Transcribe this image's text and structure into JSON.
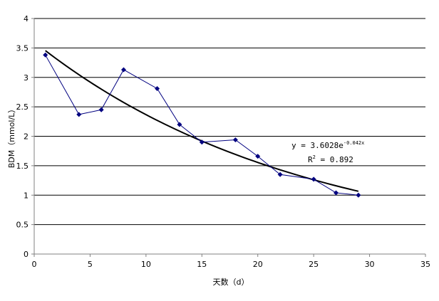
{
  "chart_data": {
    "type": "scatter",
    "title": "",
    "xlabel": "天数（d）",
    "ylabel": "BDM（mmol/L）",
    "xlim": [
      0,
      35
    ],
    "ylim": [
      0,
      4
    ],
    "x_ticks": [
      0,
      5,
      10,
      15,
      20,
      25,
      30,
      35
    ],
    "y_ticks": [
      0,
      0.5,
      1,
      1.5,
      2,
      2.5,
      3,
      3.5,
      4
    ],
    "x_tick_labels": [
      "0",
      "5",
      "10",
      "15",
      "20",
      "25",
      "30",
      "35"
    ],
    "y_tick_labels": [
      "0",
      "0.5",
      "1",
      "1.5",
      "2",
      "2.5",
      "3",
      "3.5",
      "4"
    ],
    "grid": "horizontal",
    "series": [
      {
        "x": [
          1,
          4,
          6,
          8,
          11,
          13,
          15,
          18,
          20,
          22,
          25,
          27,
          29
        ],
        "y": [
          3.38,
          2.37,
          2.45,
          3.13,
          2.81,
          2.2,
          1.9,
          1.94,
          1.66,
          1.35,
          1.27,
          1.04,
          1.0
        ],
        "color": "#000080",
        "marker": "diamond",
        "connected": true
      }
    ],
    "trendline": {
      "type": "exponential",
      "a": 3.6028,
      "b": -0.042,
      "x_range": [
        1,
        29
      ],
      "color": "#000000",
      "equation_text": {
        "prefix": "y = 3.6028e",
        "exponent": "-0.042x"
      },
      "r2_text": {
        "prefix": "R",
        "superscript": "2",
        "suffix": " = 0.892"
      }
    }
  }
}
